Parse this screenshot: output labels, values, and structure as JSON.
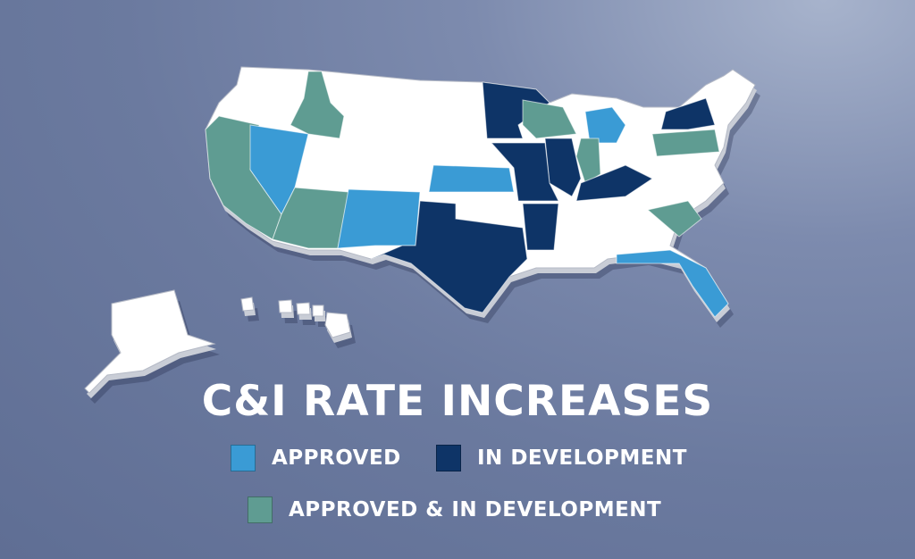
{
  "title": "C&I RATE INCREASES",
  "legend": [
    {
      "label": "APPROVED",
      "color": "#3a9bd5",
      "key": "approved"
    },
    {
      "label": "IN DEVELOPMENT",
      "color": "#0e3467",
      "key": "dev"
    },
    {
      "label": "APPROVED & IN DEVELOPMENT",
      "color": "#5f9c92",
      "key": "both"
    }
  ],
  "map_data": {
    "default_color": "#ffffff",
    "states": {
      "CA": "both",
      "NV": "approved",
      "ID": "both",
      "AZ": "both",
      "NM": "approved",
      "KS": "approved",
      "TX": "dev",
      "MN": "dev",
      "WI": "both",
      "MI": "approved",
      "IL": "dev",
      "MO": "dev",
      "IN": "both",
      "KY": "dev",
      "AR": "dev",
      "NY": "dev",
      "PA": "both",
      "SC": "both",
      "FL": "approved"
    }
  }
}
